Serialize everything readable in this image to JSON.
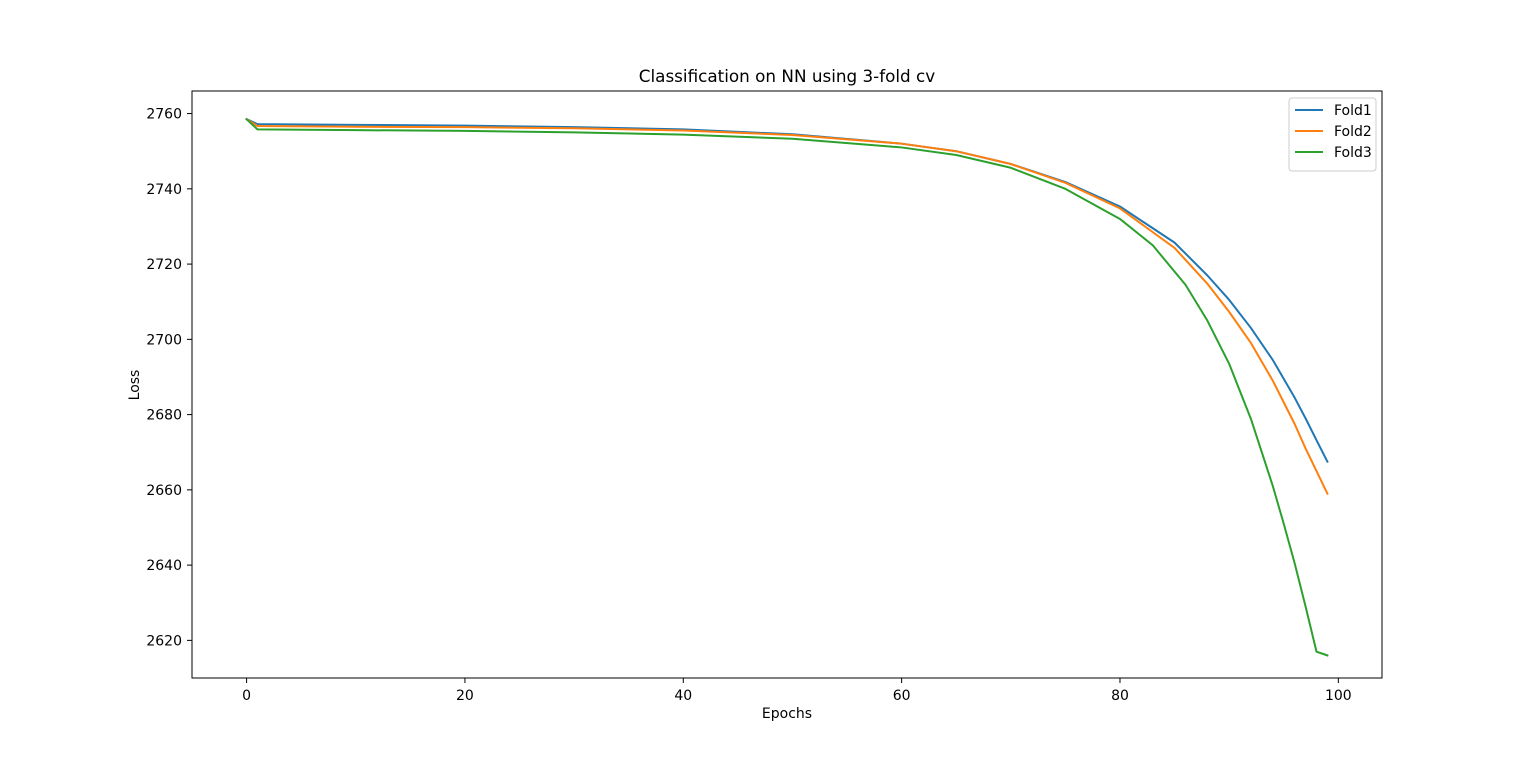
{
  "chart_data": {
    "type": "line",
    "title": "Classification on NN using 3-fold cv",
    "xlabel": "Epochs",
    "ylabel": "Loss",
    "xlim": [
      -5,
      104
    ],
    "ylim": [
      2610,
      2766
    ],
    "xticks": [
      0,
      20,
      40,
      60,
      80,
      100
    ],
    "yticks": [
      2620,
      2640,
      2660,
      2680,
      2700,
      2720,
      2740,
      2760
    ],
    "grid": false,
    "legend_position": "top-right",
    "series": [
      {
        "name": "Fold1",
        "color": "#1f77b4",
        "x": [
          0,
          1,
          10,
          20,
          30,
          40,
          50,
          60,
          65,
          70,
          75,
          80,
          85,
          88,
          90,
          92,
          94,
          96,
          97,
          98,
          99
        ],
        "y": [
          2758.5,
          2757.2,
          2757.0,
          2756.8,
          2756.4,
          2755.8,
          2754.5,
          2752.0,
          2750.0,
          2746.6,
          2741.8,
          2735.3,
          2725.7,
          2717.0,
          2710.5,
          2703.0,
          2694.5,
          2684.5,
          2679.0,
          2673.2,
          2667.5
        ]
      },
      {
        "name": "Fold2",
        "color": "#ff7f0e",
        "x": [
          0,
          1,
          10,
          20,
          30,
          40,
          50,
          60,
          65,
          70,
          75,
          80,
          85,
          88,
          90,
          92,
          94,
          96,
          97,
          98,
          99
        ],
        "y": [
          2758.5,
          2756.7,
          2756.5,
          2756.4,
          2756.1,
          2755.5,
          2754.3,
          2752.0,
          2750.0,
          2746.6,
          2741.6,
          2734.8,
          2724.3,
          2714.8,
          2707.3,
          2699.0,
          2689.0,
          2677.5,
          2671.0,
          2665.0,
          2659.0
        ]
      },
      {
        "name": "Fold3",
        "color": "#2ca02c",
        "x": [
          0,
          1,
          10,
          20,
          30,
          40,
          50,
          60,
          65,
          70,
          75,
          80,
          83,
          86,
          88,
          90,
          92,
          94,
          95,
          96,
          97,
          98,
          99
        ],
        "y": [
          2758.5,
          2755.8,
          2755.6,
          2755.4,
          2755.0,
          2754.4,
          2753.3,
          2751.0,
          2749.0,
          2745.6,
          2740.0,
          2732.0,
          2725.0,
          2714.5,
          2705.0,
          2693.5,
          2678.8,
          2661.0,
          2651.0,
          2640.5,
          2629.0,
          2617.0,
          2616.0
        ]
      }
    ]
  }
}
